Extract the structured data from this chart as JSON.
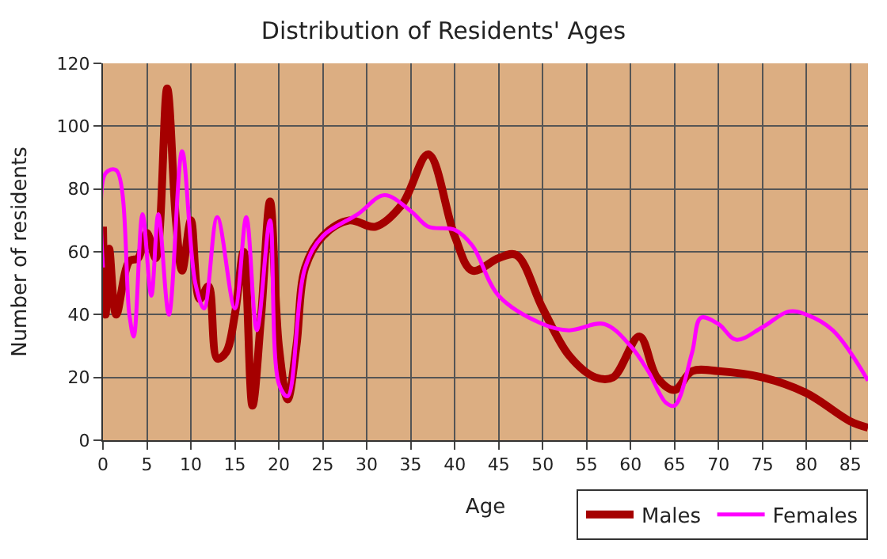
{
  "chart_data": {
    "type": "line",
    "title": "Distribution of Residents' Ages",
    "xlabel": "Age",
    "ylabel": "Number of residents",
    "xlim": [
      0,
      87
    ],
    "xticks": [
      0,
      5,
      10,
      15,
      20,
      25,
      30,
      35,
      40,
      45,
      50,
      55,
      60,
      65,
      70,
      75,
      80,
      85
    ],
    "ylim": [
      0,
      120
    ],
    "yticks": [
      0,
      20,
      40,
      60,
      80,
      100,
      120
    ],
    "grid": true,
    "legend": "bottom right",
    "series": [
      {
        "name": "Males",
        "color": "#a50000",
        "x": [
          0,
          0.3,
          0.7,
          1.5,
          3,
          4,
          5,
          6,
          7.3,
          8.3,
          9,
          10,
          11,
          12,
          13,
          14,
          15,
          16,
          17,
          18,
          19,
          20,
          21,
          22,
          23,
          25,
          28,
          31,
          34,
          37,
          40,
          42,
          45,
          47,
          50,
          53,
          56,
          58,
          61,
          63,
          65,
          67,
          70,
          75,
          80,
          85,
          87
        ],
        "values": [
          68,
          40,
          61,
          40,
          57,
          58,
          66,
          58,
          112,
          70,
          54,
          70,
          45,
          49,
          26,
          28,
          40,
          60,
          11,
          40,
          76,
          30,
          13,
          30,
          55,
          65,
          70,
          68,
          75,
          91,
          65,
          54,
          58,
          59,
          42,
          27,
          20,
          20,
          33,
          20,
          16,
          22,
          22,
          20,
          15,
          6,
          4
        ]
      },
      {
        "name": "Females",
        "color": "#ff00ff",
        "x": [
          0,
          0.3,
          1.5,
          3,
          3.5,
          4.5,
          5.5,
          6.3,
          7.5,
          9,
          10.5,
          11.5,
          13,
          15,
          16.3,
          17.5,
          19,
          20,
          21,
          23,
          25,
          29,
          32,
          35,
          37,
          40,
          42,
          45,
          50,
          53,
          57,
          60,
          62,
          64,
          65,
          67,
          68,
          70,
          72,
          75,
          78,
          80,
          83,
          87
        ],
        "values": [
          55,
          85,
          86,
          40,
          33,
          72,
          46,
          72,
          40,
          92,
          50,
          42,
          71,
          42,
          71,
          35,
          70,
          18,
          14,
          55,
          65,
          72,
          78,
          73,
          68,
          67,
          62,
          46,
          37,
          35,
          37,
          30,
          22,
          12,
          11,
          28,
          39,
          37,
          32,
          36,
          41,
          40,
          35,
          19
        ]
      }
    ]
  }
}
